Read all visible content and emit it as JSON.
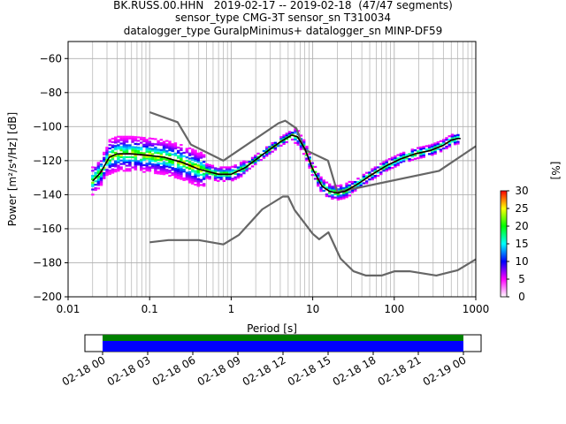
{
  "title_lines": [
    "BK.RUSS.00.HHN   2019-02-17 -- 2019-02-18  (47/47 segments)",
    "sensor_type CMG-3T sensor_sn T310034",
    "datalogger_type GuralpMinimus+ datalogger_sn MINP-DF59"
  ],
  "chart_data": [
    {
      "type": "line",
      "xlabel": "Period [s]",
      "ylabel": "Power [m²/s⁴/Hz] [dB]",
      "xscale": "log",
      "xlim": [
        0.01,
        1000
      ],
      "ylim": [
        -200,
        -50
      ],
      "xticks": [
        0.01,
        0.1,
        1,
        10,
        100,
        1000
      ],
      "xtick_labels": [
        "0.01",
        "0.1",
        "1",
        "10",
        "100",
        "1000"
      ],
      "yticks": [
        -200,
        -180,
        -160,
        -140,
        -120,
        -100,
        -80,
        -60
      ],
      "ytick_labels": [
        "−200",
        "−180",
        "−160",
        "−140",
        "−120",
        "−100",
        "−80",
        "−60"
      ],
      "grid": true,
      "series": [
        {
          "role": "noise-model-high",
          "color": "#666666",
          "x": [
            0.1,
            0.22,
            0.32,
            0.8,
            3.8,
            4.6,
            6.3,
            7.9,
            15.4,
            20,
            354.8,
            1000
          ],
          "y": [
            -91.5,
            -97.4,
            -110.5,
            -120,
            -98,
            -96.5,
            -101,
            -113.5,
            -120,
            -138.5,
            -126,
            -111.5
          ]
        },
        {
          "role": "noise-model-low",
          "color": "#666666",
          "x": [
            0.1,
            0.17,
            0.4,
            0.8,
            1.24,
            2.4,
            4.3,
            5,
            6,
            10,
            12,
            15.6,
            21.9,
            31.6,
            45,
            70,
            101,
            154,
            328,
            600,
            1000
          ],
          "y": [
            -168,
            -166.7,
            -166.7,
            -169.2,
            -163.7,
            -148.6,
            -141.1,
            -141.1,
            -149,
            -163,
            -166.2,
            -162.1,
            -177.5,
            -185,
            -187.5,
            -187.5,
            -185,
            -185,
            -187.5,
            -184.4,
            -178
          ]
        },
        {
          "role": "mean-psd",
          "color": "#000000",
          "x": [
            0.02,
            0.025,
            0.032,
            0.04,
            0.06,
            0.1,
            0.15,
            0.25,
            0.4,
            0.7,
            1,
            1.5,
            2.5,
            4,
            5.5,
            6.5,
            8,
            10,
            13,
            16,
            20,
            25,
            35,
            50,
            80,
            120,
            180,
            280,
            400,
            500,
            600,
            650
          ],
          "y": [
            -132,
            -127,
            -118,
            -116,
            -116,
            -117,
            -118,
            -121,
            -125,
            -128,
            -128,
            -124,
            -116,
            -109,
            -105,
            -106,
            -113,
            -125,
            -135,
            -138,
            -139,
            -138,
            -134,
            -129,
            -123,
            -119,
            -116,
            -114,
            -111,
            -108,
            -107,
            -107
          ]
        }
      ],
      "colorbar": {
        "label": "[%]",
        "min": 0,
        "max": 30,
        "ticks": [
          0,
          5,
          10,
          15,
          20,
          25,
          30
        ],
        "colormap": [
          "#ffffff",
          "#ff00ff",
          "#0000ff",
          "#00ffff",
          "#00ff00",
          "#ffff00",
          "#ff0000"
        ]
      }
    },
    {
      "type": "timeline",
      "tick_labels": [
        "02-18 00",
        "02-18 03",
        "02-18 06",
        "02-18 09",
        "02-18 12",
        "02-18 15",
        "02-18 18",
        "02-18 21",
        "02-19 00"
      ],
      "bands": [
        {
          "role": "data-coverage",
          "color": "#008000"
        },
        {
          "role": "gap-free",
          "color": "#0000ff"
        }
      ]
    }
  ]
}
